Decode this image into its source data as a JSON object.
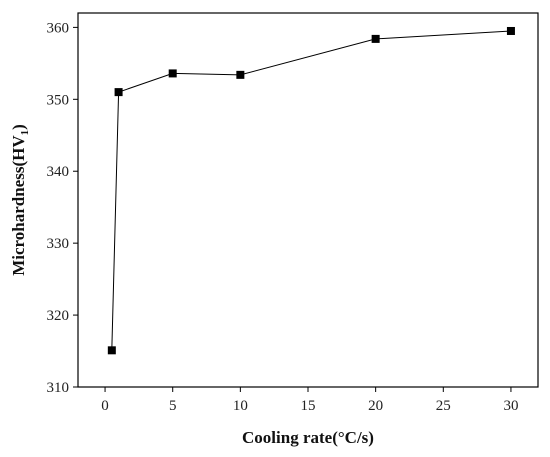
{
  "chart_data": {
    "type": "line",
    "xlabel": "Cooling rate(°C/s)",
    "ylabel": {
      "main": "Microhardness(HV",
      "subscript": "1",
      "close": ")"
    },
    "xlim": [
      -2,
      32
    ],
    "ylim": [
      310,
      362
    ],
    "xticks": [
      0,
      5,
      10,
      15,
      20,
      25,
      30
    ],
    "xtick_labels": [
      "0",
      "5",
      "10",
      "15",
      "20",
      "25",
      "30"
    ],
    "yticks": [
      310,
      320,
      330,
      340,
      350,
      360
    ],
    "ytick_labels": [
      "310",
      "320",
      "330",
      "340",
      "350",
      "360"
    ],
    "grid": false,
    "series": [
      {
        "marker": "square",
        "color": "#000000",
        "x": [
          0.5,
          1,
          5,
          10,
          20,
          30
        ],
        "y": [
          315.1,
          351.0,
          353.6,
          353.4,
          358.4,
          359.5
        ]
      }
    ]
  }
}
